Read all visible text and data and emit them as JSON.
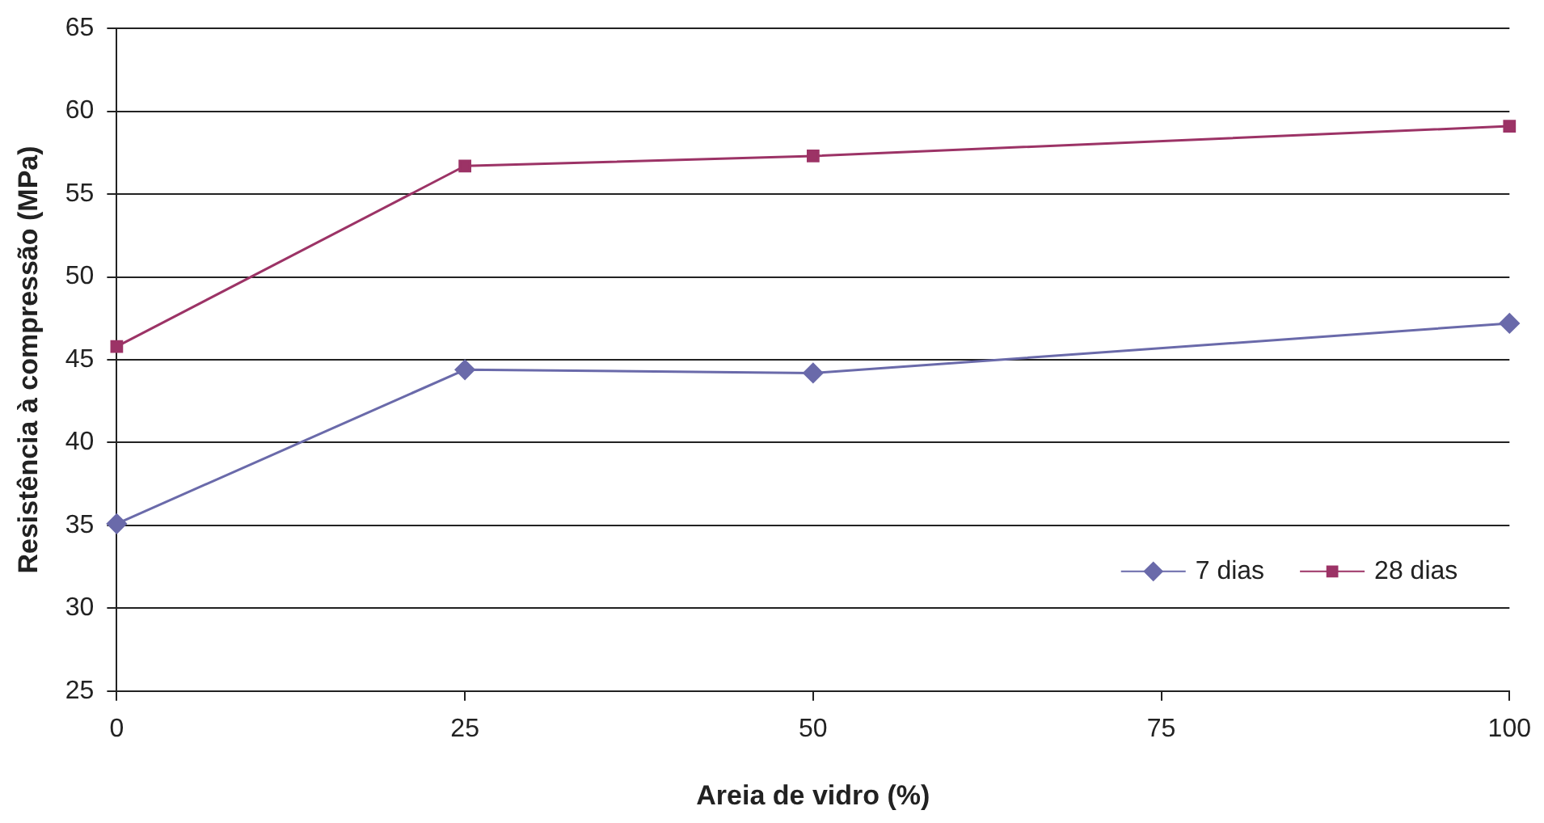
{
  "chart_data": {
    "type": "line",
    "xlabel": "Areia de vidro (%)",
    "ylabel": "Resistência à compressão (MPa)",
    "x": [
      0,
      25,
      50,
      100
    ],
    "series": [
      {
        "name": "7 dias",
        "color": "#6a6aaa",
        "marker": "diamond",
        "values": [
          35.1,
          44.4,
          44.2,
          47.2
        ]
      },
      {
        "name": "28 dias",
        "color": "#9c3366",
        "marker": "square",
        "values": [
          45.8,
          56.7,
          57.3,
          59.1
        ]
      }
    ],
    "xlim": [
      0,
      100
    ],
    "xticks": [
      0,
      25,
      50,
      75,
      100
    ],
    "ylim": [
      25,
      65
    ],
    "yticks": [
      25,
      30,
      35,
      40,
      45,
      50,
      55,
      60,
      65
    ],
    "grid": "y",
    "legend": "bottom right"
  }
}
